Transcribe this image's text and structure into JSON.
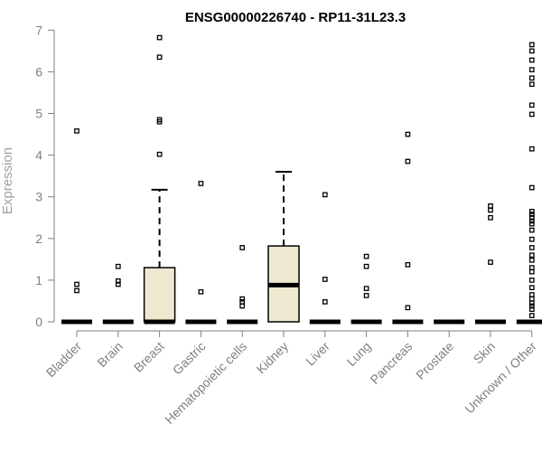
{
  "chart_data": {
    "type": "boxplot",
    "title": "ENSG00000226740 - RP11-31L23.3",
    "xlabel": "",
    "ylabel": "Expression",
    "ylim": [
      0,
      7
    ],
    "yticks": [
      0,
      1,
      2,
      3,
      4,
      5,
      6,
      7
    ],
    "grid": false,
    "legend": "none",
    "box_fill": "#efe8d0",
    "categories": [
      "Bladder",
      "Brain",
      "Breast",
      "Gastric",
      "Hematopoietic cells",
      "Kidney",
      "Liver",
      "Lung",
      "Pancreas",
      "Prostate",
      "Skin",
      "Unknown / Other"
    ],
    "boxes": [
      {
        "category": "Bladder",
        "min": 0,
        "q1": 0,
        "median": 0,
        "q3": 0,
        "max": 0,
        "outliers": [
          4.58,
          0.9,
          0.75
        ]
      },
      {
        "category": "Brain",
        "min": 0,
        "q1": 0,
        "median": 0,
        "q3": 0,
        "max": 0,
        "outliers": [
          1.33,
          0.98,
          0.9
        ]
      },
      {
        "category": "Breast",
        "min": 0,
        "q1": 0,
        "median": 0,
        "q3": 1.3,
        "max": 3.17,
        "outliers": [
          6.82,
          6.35,
          4.85,
          4.8,
          4.02
        ]
      },
      {
        "category": "Gastric",
        "min": 0,
        "q1": 0,
        "median": 0,
        "q3": 0,
        "max": 0,
        "outliers": [
          3.32,
          0.72
        ]
      },
      {
        "category": "Hematopoietic cells",
        "min": 0,
        "q1": 0,
        "median": 0,
        "q3": 0,
        "max": 0,
        "outliers": [
          1.78,
          0.55,
          0.48,
          0.38
        ]
      },
      {
        "category": "Kidney",
        "min": 0,
        "q1": 0,
        "median": 0.88,
        "q3": 1.82,
        "max": 3.6,
        "outliers": []
      },
      {
        "category": "Liver",
        "min": 0,
        "q1": 0,
        "median": 0,
        "q3": 0,
        "max": 0,
        "outliers": [
          3.05,
          1.02,
          0.48
        ]
      },
      {
        "category": "Lung",
        "min": 0,
        "q1": 0,
        "median": 0,
        "q3": 0,
        "max": 0,
        "outliers": [
          1.57,
          1.33,
          0.8,
          0.63
        ]
      },
      {
        "category": "Pancreas",
        "min": 0,
        "q1": 0,
        "median": 0,
        "q3": 0,
        "max": 0,
        "outliers": [
          4.5,
          3.85,
          1.37,
          0.34
        ]
      },
      {
        "category": "Prostate",
        "min": 0,
        "q1": 0,
        "median": 0,
        "q3": 0,
        "max": 0,
        "outliers": []
      },
      {
        "category": "Skin",
        "min": 0,
        "q1": 0,
        "median": 0,
        "q3": 0,
        "max": 0,
        "outliers": [
          2.78,
          2.68,
          2.5,
          1.43
        ]
      },
      {
        "category": "Unknown / Other",
        "min": 0,
        "q1": 0,
        "median": 0,
        "q3": 0,
        "max": 0,
        "outliers": [
          6.65,
          6.5,
          6.28,
          6.05,
          5.85,
          5.7,
          5.2,
          4.98,
          4.15,
          3.22,
          2.65,
          2.58,
          2.5,
          2.42,
          2.35,
          2.2,
          1.98,
          1.78,
          1.6,
          1.48,
          1.3,
          1.2,
          1.0,
          0.82,
          0.65,
          0.55,
          0.45,
          0.38,
          0.3,
          0.15
        ]
      }
    ]
  }
}
